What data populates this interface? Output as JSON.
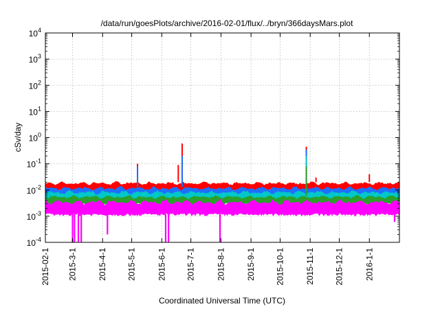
{
  "chart_data": {
    "type": "line",
    "title": "/data/run/goesPlots/archive/2016-02-01/flux/../bryn/366daysMars.plot",
    "xlabel": "Coordinated Universal Time (UTC)",
    "ylabel": "cSv/day",
    "yscale": "log",
    "ylim": [
      0.0001,
      10000
    ],
    "xlim": [
      "2015-02-01",
      "2016-02-01"
    ],
    "grid": true,
    "x_ticks": [
      "2015-02-1",
      "2015-3-1",
      "2015-4-1",
      "2015-5-1",
      "2015-6-1",
      "2015-7-1",
      "2015-8-1",
      "2015-9-1",
      "2015-10-1",
      "2015-11-1",
      "2015-12-1",
      "2016-1-1"
    ],
    "x_tick_dates": [
      "2015-02-01",
      "2015-03-01",
      "2015-04-01",
      "2015-05-01",
      "2015-06-01",
      "2015-07-01",
      "2015-08-01",
      "2015-09-01",
      "2015-10-01",
      "2015-11-01",
      "2015-12-01",
      "2016-01-01"
    ],
    "y_ticks": [
      {
        "base": "10",
        "exp": "-4",
        "value": 0.0001
      },
      {
        "base": "10",
        "exp": "-3",
        "value": 0.001
      },
      {
        "base": "10",
        "exp": "-2",
        "value": 0.01
      },
      {
        "base": "10",
        "exp": "-1",
        "value": 0.1
      },
      {
        "base": "10",
        "exp": "0",
        "value": 1
      },
      {
        "base": "10",
        "exp": "1",
        "value": 10
      },
      {
        "base": "10",
        "exp": "2",
        "value": 100
      },
      {
        "base": "10",
        "exp": "3",
        "value": 1000
      },
      {
        "base": "10",
        "exp": "4",
        "value": 10000
      }
    ],
    "series": [
      {
        "color": "#ff0000",
        "typical_range": [
          0.01,
          0.02
        ],
        "spikes": [
          {
            "x": "2015-05-07",
            "y": 0.1
          },
          {
            "x": "2015-06-18",
            "y": 0.09
          },
          {
            "x": "2015-06-22",
            "y": 0.6
          },
          {
            "x": "2015-10-28",
            "y": 0.45
          },
          {
            "x": "2015-11-07",
            "y": 0.03
          },
          {
            "x": "2016-01-01",
            "y": 0.04
          }
        ]
      },
      {
        "color": "#1f6fff",
        "typical_range": [
          0.006,
          0.013
        ],
        "spikes": [
          {
            "x": "2015-05-07",
            "y": 0.08
          },
          {
            "x": "2015-06-22",
            "y": 0.2
          },
          {
            "x": "2015-10-28",
            "y": 0.35
          }
        ]
      },
      {
        "color": "#00c8c8",
        "typical_range": [
          0.004,
          0.009
        ],
        "spikes": [
          {
            "x": "2015-10-28",
            "y": 0.2
          }
        ]
      },
      {
        "color": "#2ca02c",
        "typical_range": [
          0.003,
          0.006
        ],
        "spikes": [
          {
            "x": "2015-10-28",
            "y": 0.08
          }
        ]
      },
      {
        "color": "#ff00ff",
        "typical_range": [
          0.0012,
          0.004
        ],
        "dips": [
          {
            "x": "2015-03-01",
            "y": 0.0001
          },
          {
            "x": "2015-03-03",
            "y": 0.0001
          },
          {
            "x": "2015-03-07",
            "y": 0.0001
          },
          {
            "x": "2015-03-10",
            "y": 0.0001
          },
          {
            "x": "2015-04-06",
            "y": 0.0002
          },
          {
            "x": "2015-06-05",
            "y": 0.0001
          },
          {
            "x": "2015-06-08",
            "y": 0.0001
          },
          {
            "x": "2015-07-31",
            "y": 0.0001
          },
          {
            "x": "2016-01-27",
            "y": 0.0006
          }
        ]
      }
    ]
  }
}
